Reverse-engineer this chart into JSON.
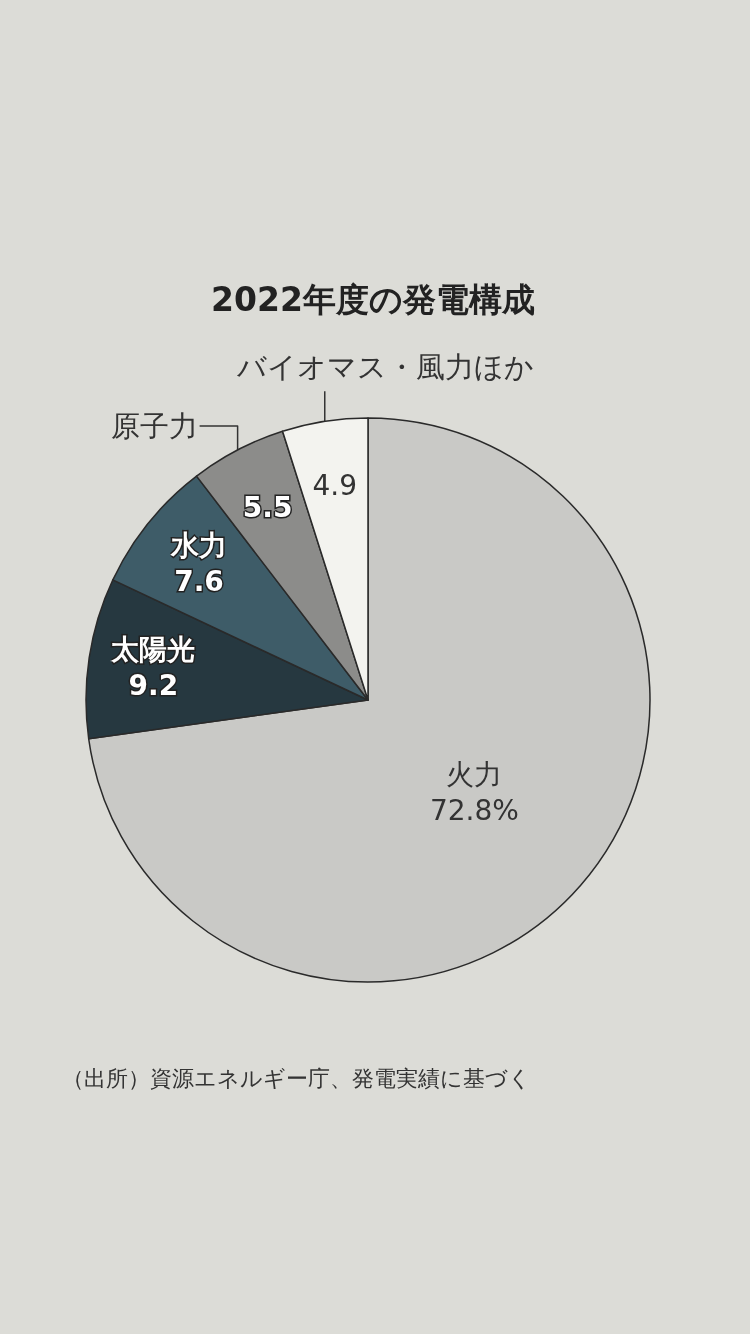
{
  "chart_data": {
    "type": "pie",
    "title": "2022年度の発電構成",
    "categories": [
      "火力",
      "太陽光",
      "水力",
      "原子力",
      "バイオマス・風力ほか"
    ],
    "values": [
      72.8,
      9.2,
      7.6,
      5.5,
      4.9
    ],
    "colors": [
      "#c9c9c6",
      "#263840",
      "#3e5c68",
      "#8c8c8a",
      "#f3f3ef"
    ],
    "value_labels": [
      "72.8%",
      "9.2",
      "7.6",
      "5.5",
      "4.9"
    ],
    "annotations": [
      "（出所）資源エネルギー庁、発電実績に基づく"
    ]
  }
}
